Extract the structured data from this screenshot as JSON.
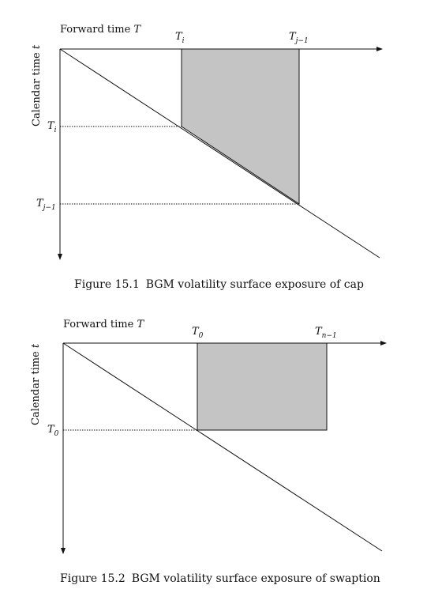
{
  "figure1": {
    "x_axis_label": "Forward time",
    "x_axis_symbol": "T",
    "y_axis_label": "Calendar time",
    "y_axis_symbol": "t",
    "top_labels": [
      {
        "main": "T",
        "sub": "i"
      },
      {
        "main": "T",
        "sub": "j−1"
      }
    ],
    "left_labels": [
      {
        "main": "T",
        "sub": "i"
      },
      {
        "main": "T",
        "sub": "j−1"
      }
    ],
    "caption_number": "Figure 15.1",
    "caption_text": "BGM volatility surface exposure of cap"
  },
  "figure2": {
    "x_axis_label": "Forward time",
    "x_axis_symbol": "T",
    "y_axis_label": "Calendar time",
    "y_axis_symbol": "t",
    "top_labels": [
      {
        "main": "T",
        "sub": "0"
      },
      {
        "main": "T",
        "sub": "n−1"
      }
    ],
    "left_labels": [
      {
        "main": "T",
        "sub": "0"
      }
    ],
    "caption_number": "Figure 15.2",
    "caption_text": "BGM volatility surface exposure of swaption"
  },
  "colors": {
    "shade": "#c4c4c4",
    "line": "#111111"
  }
}
